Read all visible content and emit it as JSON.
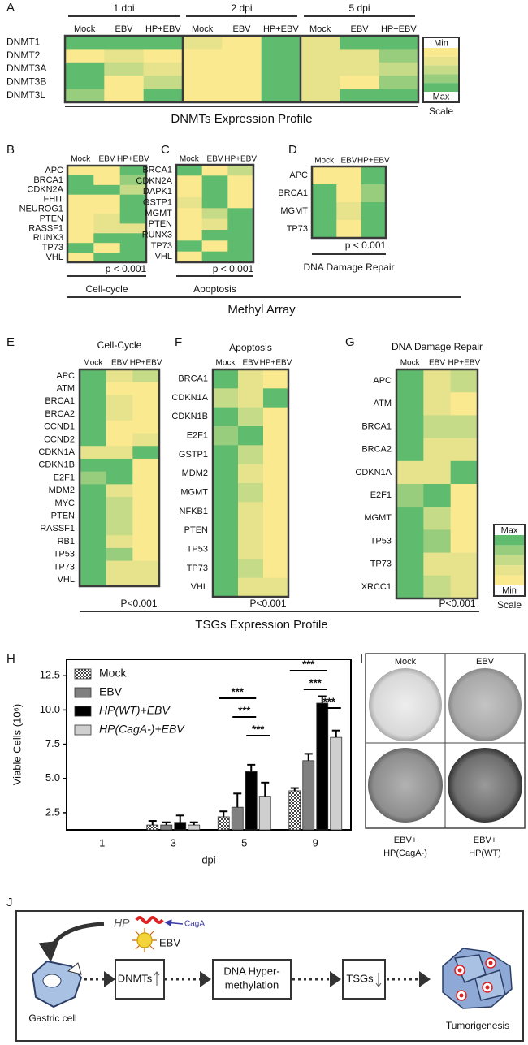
{
  "chart_data": [
    {
      "type": "heatmap",
      "label": "A",
      "groups": [
        "1 dpi",
        "2 dpi",
        "5 dpi"
      ],
      "columns": [
        "Mock",
        "EBV",
        "HP+EBV",
        "Mock",
        "EBV",
        "HP+EBV",
        "Mock",
        "EBV",
        "HP+EBV"
      ],
      "rows": [
        "DNMT1",
        "DNMT2",
        "DNMT3A",
        "DNMT3B",
        "DNMT3L"
      ],
      "values": [
        [
          4,
          4,
          4,
          1,
          0,
          4,
          1,
          4,
          4
        ],
        [
          0,
          1,
          0,
          0,
          0,
          4,
          1,
          1,
          3
        ],
        [
          4,
          2,
          1,
          0,
          0,
          4,
          1,
          1,
          2
        ],
        [
          4,
          0,
          2,
          0,
          0,
          4,
          1,
          0,
          3
        ],
        [
          3,
          0,
          4,
          0,
          0,
          4,
          1,
          4,
          4
        ]
      ],
      "title": "DNMTs Expression Profile"
    },
    {
      "type": "heatmap",
      "label": "B",
      "columns": [
        "Mock",
        "EBV",
        "HP+EBV"
      ],
      "rows": [
        "APC",
        "BRCA1",
        "CDKN2A",
        "FHIT",
        "NEUROG1",
        "PTEN",
        "RASSF1",
        "RUNX3",
        "TP73",
        "VHL"
      ],
      "values": [
        [
          0,
          0,
          4
        ],
        [
          4,
          0,
          3
        ],
        [
          4,
          4,
          2
        ],
        [
          0,
          0,
          4
        ],
        [
          0,
          0,
          4
        ],
        [
          0,
          1,
          4
        ],
        [
          0,
          1,
          1
        ],
        [
          0,
          4,
          4
        ],
        [
          4,
          0,
          4
        ],
        [
          0,
          4,
          4
        ]
      ],
      "p_value": "p < 0.001",
      "title": "Cell-cycle"
    },
    {
      "type": "heatmap",
      "label": "C",
      "columns": [
        "Mock",
        "EBV",
        "HP+EBV"
      ],
      "rows": [
        "BRCA1",
        "CDKN2A",
        "DAPK1",
        "GSTP1",
        "MGMT",
        "PTEN",
        "RUNX3",
        "TP73",
        "VHL"
      ],
      "values": [
        [
          4,
          0,
          2
        ],
        [
          0,
          4,
          0
        ],
        [
          0,
          4,
          0
        ],
        [
          1,
          4,
          0
        ],
        [
          0,
          2,
          4
        ],
        [
          0,
          1,
          4
        ],
        [
          0,
          4,
          4
        ],
        [
          4,
          0,
          4
        ],
        [
          0,
          4,
          4
        ]
      ],
      "p_value": "p < 0.001",
      "title": "Apoptosis"
    },
    {
      "type": "heatmap",
      "label": "D",
      "columns": [
        "Mock",
        "EBV",
        "HP+EBV"
      ],
      "rows": [
        "APC",
        "BRCA1",
        "MGMT",
        "TP73"
      ],
      "values": [
        [
          0,
          0,
          4
        ],
        [
          4,
          0,
          3
        ],
        [
          4,
          1,
          4
        ],
        [
          4,
          0,
          4
        ]
      ],
      "p_value": "p < 0.001",
      "title": "DNA Damage Repair"
    },
    {
      "type": "heatmap",
      "label": "E",
      "columns": [
        "Mock",
        "EBV",
        "HP+EBV"
      ],
      "rows": [
        "APC",
        "ATM",
        "BRCA1",
        "BRCA2",
        "CCND1",
        "CCND2",
        "CDKN1A",
        "CDKN1B",
        "E2F1",
        "MDM2",
        "MYC",
        "PTEN",
        "RASSF1",
        "RB1",
        "TP53",
        "TP73",
        "VHL"
      ],
      "values": [
        [
          4,
          1,
          2
        ],
        [
          4,
          0,
          0
        ],
        [
          4,
          1,
          0
        ],
        [
          4,
          1,
          0
        ],
        [
          4,
          0,
          0
        ],
        [
          4,
          0,
          1
        ],
        [
          1,
          1,
          4
        ],
        [
          4,
          4,
          0
        ],
        [
          3,
          4,
          0
        ],
        [
          4,
          1,
          0
        ],
        [
          4,
          2,
          0
        ],
        [
          4,
          2,
          0
        ],
        [
          4,
          2,
          0
        ],
        [
          4,
          1,
          0
        ],
        [
          4,
          3,
          0
        ],
        [
          4,
          1,
          1
        ],
        [
          4,
          1,
          1
        ]
      ],
      "p_value": "P<0.001",
      "title": "Cell-Cycle"
    },
    {
      "type": "heatmap",
      "label": "F",
      "columns": [
        "Mock",
        "EBV",
        "HP+EBV"
      ],
      "rows": [
        "BRCA1",
        "CDKN1A",
        "CDKN1B",
        "E2F1",
        "GSTP1",
        "MDM2",
        "MGMT",
        "NFKB1",
        "PTEN",
        "TP53",
        "TP73",
        "VHL"
      ],
      "values": [
        [
          4,
          1,
          0
        ],
        [
          2,
          1,
          4
        ],
        [
          4,
          2,
          0
        ],
        [
          3,
          4,
          0
        ],
        [
          4,
          2,
          0
        ],
        [
          4,
          1,
          0
        ],
        [
          4,
          2,
          0
        ],
        [
          4,
          1,
          0
        ],
        [
          4,
          1,
          0
        ],
        [
          4,
          1,
          0
        ],
        [
          4,
          2,
          0
        ],
        [
          4,
          1,
          1
        ]
      ],
      "p_value": "P<0.001",
      "title": "Apoptosis"
    },
    {
      "type": "heatmap",
      "label": "G",
      "columns": [
        "Mock",
        "EBV",
        "HP+EBV"
      ],
      "rows": [
        "APC",
        "ATM",
        "BRCA1",
        "BRCA2",
        "CDKN1A",
        "E2F1",
        "MGMT",
        "TP53",
        "TP73",
        "XRCC1"
      ],
      "values": [
        [
          4,
          1,
          2
        ],
        [
          4,
          1,
          0
        ],
        [
          4,
          2,
          2
        ],
        [
          4,
          1,
          1
        ],
        [
          1,
          1,
          4
        ],
        [
          3,
          4,
          0
        ],
        [
          4,
          2,
          0
        ],
        [
          4,
          3,
          0
        ],
        [
          4,
          1,
          1
        ],
        [
          4,
          2,
          1
        ]
      ],
      "p_value": "P<0.001",
      "title": "DNA Damage Repair"
    },
    {
      "type": "bar",
      "label": "H",
      "categories": [
        "1",
        "3",
        "5",
        "9"
      ],
      "xlabel": "dpi",
      "ylabel": "Viable Cells (10⁶)",
      "ylim": [
        1.25,
        13.7
      ],
      "yticks": [
        2.5,
        {
          "value": 5,
          "label": "5.0"
        },
        7.5,
        {
          "value": 10,
          "label": "10.0"
        },
        12.5
      ],
      "legend": "upper-left",
      "series": [
        {
          "name": "Mock",
          "color": "#444444",
          "pattern": "checker",
          "italic": false,
          "values": [
            null,
            1.6,
            2.2,
            4.1
          ],
          "errors": [
            null,
            0.3,
            0.4,
            0.2
          ]
        },
        {
          "name": "EBV",
          "color": "#808080",
          "italic": false,
          "values": [
            null,
            1.6,
            2.9,
            6.3
          ],
          "errors": [
            null,
            0.2,
            1.0,
            0.5
          ]
        },
        {
          "name": "HP(WT)+EBV",
          "color": "#000000",
          "italic": true,
          "values": [
            null,
            1.8,
            5.5,
            10.5
          ],
          "errors": [
            null,
            0.5,
            0.5,
            0.5
          ]
        },
        {
          "name": "HP(CagA-)+EBV",
          "color": "#cfcfcf",
          "italic": true,
          "values": [
            null,
            1.6,
            3.7,
            8.0
          ],
          "errors": [
            null,
            0.2,
            1.0,
            0.5
          ]
        }
      ],
      "annotations": [
        "***",
        "***",
        "***",
        "***",
        "***",
        "***"
      ]
    }
  ],
  "scale": {
    "colors": [
      "#fbe98f",
      "#e6e38c",
      "#c6db88",
      "#98cd7e",
      "#5fbb6e"
    ],
    "min": "Min",
    "max": "Max",
    "label": "Scale"
  },
  "sections": [
    "Methyl Array",
    "TSGs Expression Profile"
  ],
  "photos": {
    "label": "I",
    "top": [
      "Mock",
      "EBV"
    ],
    "bottom": [
      [
        "EBV+",
        "HP(CagA-)"
      ],
      [
        "EBV+",
        "HP(WT)"
      ]
    ]
  },
  "diagram": {
    "label": "J",
    "hp": "HP",
    "caga": "CagA",
    "ebv": "EBV",
    "cell": "Gastric cell",
    "dnmts": "DNMTs",
    "dna": [
      "DNA Hyper-",
      "methylation"
    ],
    "tsgs": "TSGs",
    "outcome": "Tumorigenesis"
  }
}
